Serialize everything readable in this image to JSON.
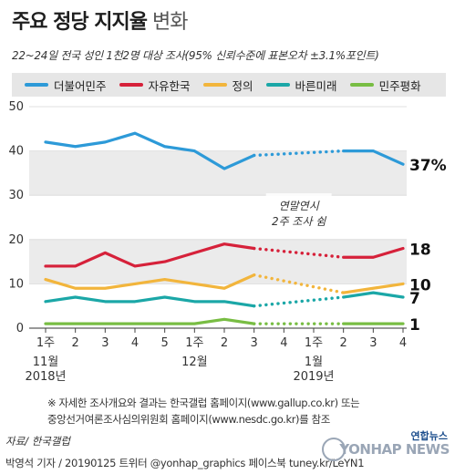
{
  "header": {
    "title_main": "주요 정당 지지율",
    "title_light": "변화",
    "subtitle": "22~24일 전국 성인 1천2명 대상 조사(95% 신뢰수준에 표본오차 ±3.1%포인트)"
  },
  "annotation": {
    "line1": "연말연시",
    "line2": "2주 조사 쉼"
  },
  "footnote": {
    "line1": "※ 자세한 조사개요와 결과는 한국갤럽 홈페이지(www.gallup.co.kr) 또는",
    "line2": "중앙선거여론조사심의위원회 홈페이지(www.nesdc.go.kr)를 참조"
  },
  "source": "자료/ 한국갤럽",
  "byline": "박영석 기자 / 20190125 트위터 @yonhap_graphics  페이스북 tuney.kr/LeYN1",
  "logo": {
    "brand": "연합뉴스",
    "text": "YONHAP NEWS"
  },
  "chart_data": {
    "type": "line",
    "ylim": [
      0,
      50
    ],
    "yticks": [
      0,
      10,
      20,
      30,
      40,
      50
    ],
    "x_labels": [
      "1주",
      "2",
      "3",
      "4",
      "5",
      "1주",
      "2",
      "3",
      "4",
      "1주",
      "2",
      "3",
      "4"
    ],
    "month_labels": [
      {
        "index": 0,
        "month": "11월",
        "year": "2018년"
      },
      {
        "index": 5,
        "month": "12월",
        "year": ""
      },
      {
        "index": 9,
        "month": "1월",
        "year": "2019년"
      }
    ],
    "gap": {
      "from_index": 7,
      "to_index": 10
    },
    "series": [
      {
        "name": "더불어민주",
        "color": "#2d9ad8",
        "values": [
          42,
          41,
          42,
          44,
          41,
          40,
          36,
          39,
          null,
          null,
          40,
          40,
          37
        ],
        "end_label": "37%"
      },
      {
        "name": "자유한국",
        "color": "#d6213a",
        "values": [
          14,
          14,
          17,
          14,
          15,
          17,
          19,
          18,
          null,
          null,
          16,
          16,
          18
        ],
        "end_label": "18"
      },
      {
        "name": "정의",
        "color": "#f2b53c",
        "values": [
          11,
          9,
          9,
          10,
          11,
          10,
          9,
          12,
          null,
          null,
          8,
          9,
          10
        ],
        "end_label": "10"
      },
      {
        "name": "바른미래",
        "color": "#1ba7a7",
        "values": [
          6,
          7,
          6,
          6,
          7,
          6,
          6,
          5,
          null,
          null,
          7,
          8,
          7
        ],
        "end_label": "7"
      },
      {
        "name": "민주평화",
        "color": "#78bd43",
        "values": [
          1,
          1,
          1,
          1,
          1,
          1,
          2,
          1,
          null,
          null,
          1,
          1,
          1
        ],
        "end_label": "1"
      }
    ]
  }
}
